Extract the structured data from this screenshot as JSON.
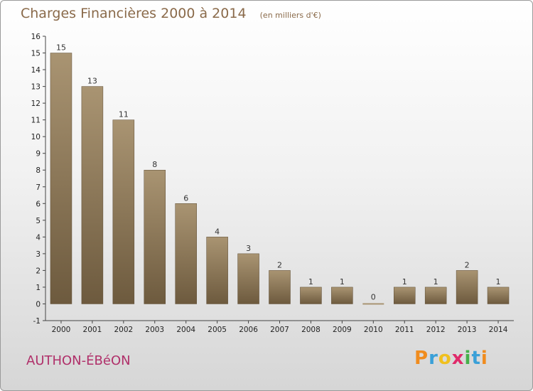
{
  "title": "Charges Financières 2000 à 2014",
  "unit": "(en milliers d'€)",
  "commune": "AUTHON-ÉBéON",
  "logo": {
    "text": "Proxiti",
    "letters": [
      {
        "ch": "P",
        "color": "#f08c1e"
      },
      {
        "ch": "r",
        "color": "#3aa0d8"
      },
      {
        "ch": "o",
        "color": "#f0c01e"
      },
      {
        "ch": "x",
        "color": "#e02a6a"
      },
      {
        "ch": "i",
        "color": "#46b04a"
      },
      {
        "ch": "t",
        "color": "#3aa0d8"
      },
      {
        "ch": "i",
        "color": "#f08c1e"
      }
    ]
  },
  "colors": {
    "bar_light": "#a99472",
    "bar_dark": "#6d5a3e",
    "grid": "#cfcfcf",
    "axis": "#444444"
  },
  "chart_data": {
    "type": "bar",
    "title": "Charges Financières 2000 à 2014",
    "subtitle": "(en milliers d'€)",
    "categories": [
      "2000",
      "2001",
      "2002",
      "2003",
      "2004",
      "2005",
      "2006",
      "2007",
      "2008",
      "2009",
      "2010",
      "2011",
      "2012",
      "2013",
      "2014"
    ],
    "values": [
      15,
      13,
      11,
      8,
      6,
      4,
      3,
      2,
      1,
      1,
      0,
      1,
      1,
      2,
      1
    ],
    "ylim": [
      -1,
      16
    ],
    "yticks": [
      -1,
      0,
      1,
      2,
      3,
      4,
      5,
      6,
      7,
      8,
      9,
      10,
      11,
      12,
      13,
      14,
      15,
      16
    ],
    "grid": false,
    "xlabel": "",
    "ylabel": ""
  }
}
